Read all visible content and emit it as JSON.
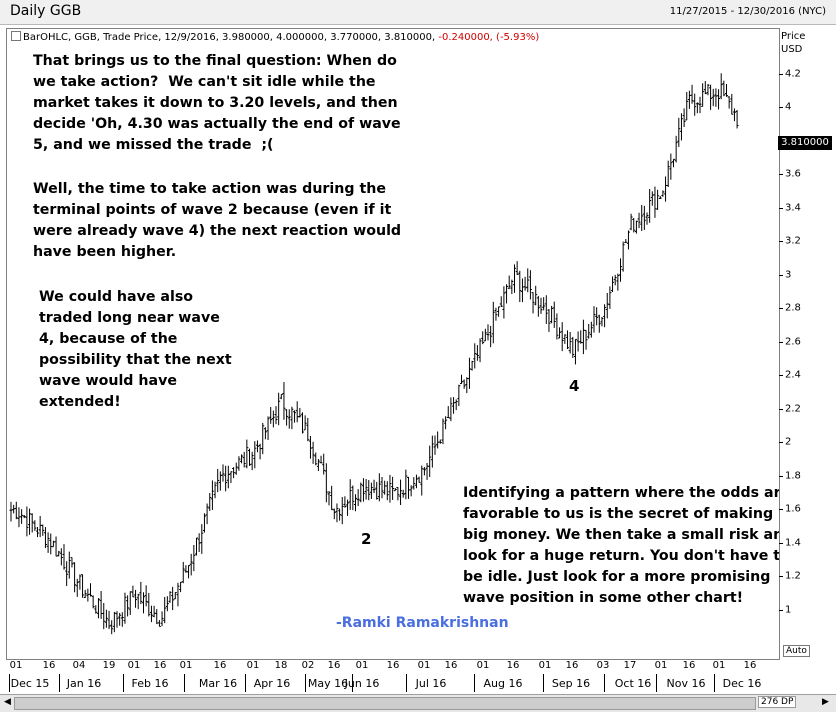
{
  "window": {
    "title": "Daily GGB",
    "date_range": "11/27/2015 - 12/30/2016 (NYC)"
  },
  "info_line": {
    "study": "BarOHLC, GGB, Trade Price, 12/9/2016, 3.980000, 4.000000, 3.770000, 3.810000,",
    "change": "-0.240000, (-5.93%)"
  },
  "y_axis": {
    "title_line1": "Price",
    "title_line2": "USD",
    "ticks": [
      "4.2",
      "4",
      "3.6",
      "3.4",
      "3.2",
      "3",
      "2.8",
      "2.6",
      "2.4",
      "2.2",
      "2",
      "1.8",
      "1.6",
      "1.4",
      "1.2",
      "1"
    ],
    "last_price": "3.810000",
    "auto_label": "Auto"
  },
  "x_axis": {
    "day_labels": [
      "01",
      "16",
      "04",
      "19",
      "01",
      "16",
      "01",
      "16",
      "01",
      "18",
      "02",
      "16",
      "01",
      "16",
      "01",
      "16",
      "01",
      "16",
      "01",
      "16",
      "03",
      "17",
      "01",
      "16",
      "01",
      "16"
    ],
    "month_labels": [
      "Dec 15",
      "Jan 16",
      "Feb 16",
      "Mar 16",
      "Apr 16",
      "May 16",
      "Jun 16",
      "Jul 16",
      "Aug 16",
      "Sep 16",
      "Oct 16",
      "Nov 16",
      "Dec 16"
    ]
  },
  "scrollbar": {
    "data_points": "276 DP"
  },
  "annotations": {
    "para1": "That brings us to the final question: When do\nwe take action?  We can't sit idle while the\nmarket takes it down to 3.20 levels, and then\ndecide 'Oh, 4.30 was actually the end of wave\n5, and we missed the trade  ;(",
    "para2": "Well, the time to take action was during the\nterminal points of wave 2 because (even if it\nwere already wave 4) the next reaction would\nhave been higher.",
    "para3": "We could have also\ntraded long near wave\n4, because of the\npossibility that the next\nwave would have\nextended!",
    "para4": "Identifying a pattern where the odds are\nfavorable to us is the secret of making\nbig money. We then take a small risk and\nlook for a huge return. You don't have to\nbe idle. Just look for a more promising\nwave position in some other chart!",
    "wave2": "2",
    "wave4": "4",
    "signature": "-Ramki Ramakrishnan"
  },
  "colors": {
    "bars": "#000000",
    "negative_change": "#d00000",
    "signature": "#4a6fe0"
  },
  "chart_data": {
    "type": "bar",
    "style": "OHLC",
    "symbol": "GGB",
    "ylim": [
      0.85,
      4.35
    ],
    "y_ticks": [
      1,
      1.2,
      1.4,
      1.6,
      1.8,
      2,
      2.2,
      2.4,
      2.6,
      2.8,
      3,
      3.2,
      3.4,
      3.6,
      4,
      4.2
    ],
    "last_bar": {
      "date": "12/9/2016",
      "open": 3.98,
      "high": 4.0,
      "low": 3.77,
      "close": 3.81
    },
    "close_series": {
      "x": [
        "2015-12-01",
        "2015-12-16",
        "2016-01-04",
        "2016-01-19",
        "2016-02-01",
        "2016-02-16",
        "2016-03-01",
        "2016-03-16",
        "2016-04-01",
        "2016-04-18",
        "2016-05-02",
        "2016-05-16",
        "2016-06-01",
        "2016-06-16",
        "2016-07-01",
        "2016-07-16",
        "2016-08-01",
        "2016-08-16",
        "2016-09-01",
        "2016-09-16",
        "2016-10-03",
        "2016-10-17",
        "2016-11-01",
        "2016-11-16",
        "2016-12-01",
        "2016-12-09"
      ],
      "values": [
        1.6,
        1.42,
        1.15,
        0.92,
        1.1,
        0.95,
        1.25,
        1.8,
        1.95,
        2.25,
        2.05,
        1.6,
        1.75,
        1.7,
        1.85,
        2.2,
        2.6,
        3.0,
        2.8,
        2.55,
        2.8,
        3.3,
        3.5,
        4.05,
        4.1,
        3.81
      ]
    }
  }
}
